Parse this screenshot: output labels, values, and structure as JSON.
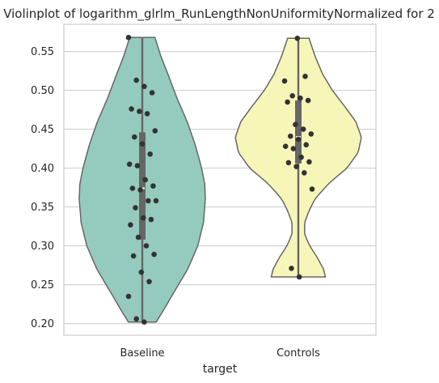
{
  "chart_data": {
    "type": "violin",
    "title": "Violinplot of logarithm_glrlm_RunLengthNonUniformityNormalized for 2",
    "xlabel": "target",
    "ylabel": "",
    "ylim": [
      0.185,
      0.585
    ],
    "yticks": [
      0.2,
      0.25,
      0.3,
      0.35,
      0.4,
      0.45,
      0.5,
      0.55
    ],
    "ytick_labels": [
      "0.20",
      "0.25",
      "0.30",
      "0.35",
      "0.40",
      "0.45",
      "0.50",
      "0.55"
    ],
    "grid": true,
    "categories": [
      "Baseline",
      "Controls"
    ],
    "groups": [
      {
        "category": "Baseline",
        "color": "#95cbbf",
        "range": [
          0.202,
          0.568
        ],
        "q1": 0.308,
        "median": 0.374,
        "q3": 0.446,
        "density": [
          [
            0.202,
            0.22
          ],
          [
            0.215,
            0.32
          ],
          [
            0.24,
            0.5
          ],
          [
            0.27,
            0.72
          ],
          [
            0.3,
            0.88
          ],
          [
            0.33,
            0.97
          ],
          [
            0.36,
            1.0
          ],
          [
            0.38,
            0.99
          ],
          [
            0.4,
            0.94
          ],
          [
            0.43,
            0.84
          ],
          [
            0.46,
            0.71
          ],
          [
            0.49,
            0.55
          ],
          [
            0.52,
            0.41
          ],
          [
            0.545,
            0.29
          ],
          [
            0.568,
            0.2
          ]
        ],
        "points": [
          0.568,
          0.513,
          0.505,
          0.497,
          0.476,
          0.473,
          0.47,
          0.448,
          0.44,
          0.431,
          0.418,
          0.405,
          0.403,
          0.385,
          0.377,
          0.374,
          0.372,
          0.358,
          0.358,
          0.349,
          0.336,
          0.334,
          0.327,
          0.311,
          0.3,
          0.289,
          0.287,
          0.266,
          0.254,
          0.235,
          0.206,
          0.202
        ]
      },
      {
        "category": "Controls",
        "color": "#f7f6b9",
        "range": [
          0.26,
          0.567
        ],
        "q1": 0.406,
        "median": 0.44,
        "q3": 0.487,
        "density": [
          [
            0.26,
            0.43
          ],
          [
            0.27,
            0.4
          ],
          [
            0.285,
            0.3
          ],
          [
            0.3,
            0.18
          ],
          [
            0.315,
            0.1
          ],
          [
            0.33,
            0.1
          ],
          [
            0.345,
            0.17
          ],
          [
            0.36,
            0.26
          ],
          [
            0.38,
            0.48
          ],
          [
            0.4,
            0.77
          ],
          [
            0.42,
            0.95
          ],
          [
            0.44,
            1.0
          ],
          [
            0.46,
            0.91
          ],
          [
            0.48,
            0.73
          ],
          [
            0.5,
            0.54
          ],
          [
            0.52,
            0.39
          ],
          [
            0.545,
            0.26
          ],
          [
            0.567,
            0.17
          ]
        ],
        "points": [
          0.567,
          0.518,
          0.512,
          0.493,
          0.49,
          0.487,
          0.485,
          0.456,
          0.45,
          0.444,
          0.441,
          0.437,
          0.43,
          0.428,
          0.425,
          0.414,
          0.408,
          0.407,
          0.402,
          0.394,
          0.373,
          0.271,
          0.26
        ]
      }
    ]
  }
}
